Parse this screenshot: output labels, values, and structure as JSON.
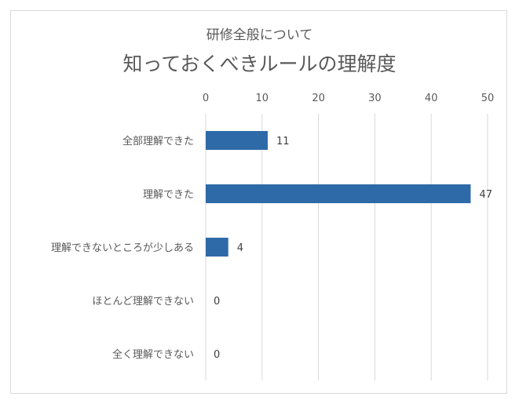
{
  "chart_data": {
    "type": "bar",
    "orientation": "horizontal",
    "subtitle": "研修全般について",
    "title": "知っておくべきルールの理解度",
    "categories": [
      "全部理解できた",
      "理解できた",
      "理解できないところが少しある",
      "ほとんど理解できない",
      "全く理解できない"
    ],
    "values": [
      11,
      47,
      4,
      0,
      0
    ],
    "xlim": [
      0,
      50
    ],
    "xticks": [
      0,
      10,
      20,
      30,
      40,
      50
    ],
    "x_axis_position": "top",
    "grid": true,
    "data_labels": true,
    "bar_color": "#2e6aa8"
  }
}
